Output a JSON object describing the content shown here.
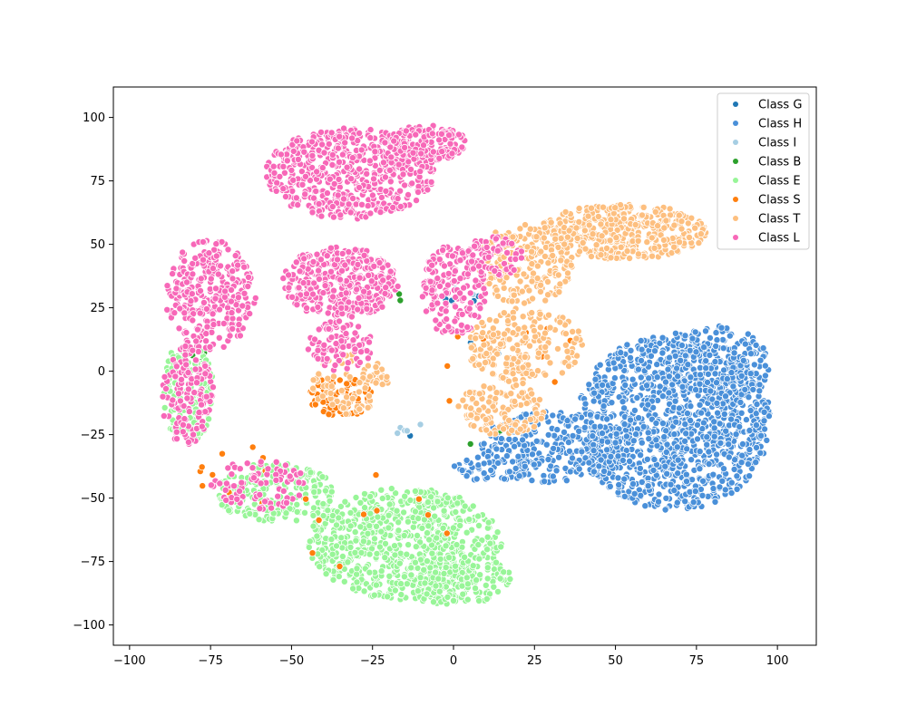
{
  "chart_data": {
    "type": "scatter",
    "title": "",
    "xlabel": "",
    "ylabel": "",
    "xlim": [
      -105,
      112
    ],
    "ylim": [
      -108,
      112
    ],
    "xticks": [
      -100,
      -75,
      -50,
      -25,
      0,
      25,
      50,
      75,
      100
    ],
    "yticks": [
      -100,
      -75,
      -50,
      -25,
      0,
      25,
      50,
      75,
      100
    ],
    "xtick_labels": [
      "−100",
      "−75",
      "−50",
      "−25",
      "0",
      "25",
      "50",
      "75",
      "100"
    ],
    "ytick_labels": [
      "−100",
      "−75",
      "−50",
      "−25",
      "0",
      "25",
      "50",
      "75",
      "100"
    ],
    "grid": false,
    "legend_position": "top-right",
    "series": [
      {
        "name": "Class G",
        "color": "#1f77b4",
        "clusters": [
          {
            "cx": 3,
            "cy": 28,
            "rx": 6,
            "ry": 4,
            "n": 4
          },
          {
            "cx": 10,
            "cy": 10,
            "rx": 5,
            "ry": 5,
            "n": 3
          },
          {
            "cx": -12,
            "cy": -24,
            "rx": 4,
            "ry": 4,
            "n": 2
          }
        ]
      },
      {
        "name": "Class H",
        "color": "#4a90d9",
        "clusters": [
          {
            "cx": 68,
            "cy": -20,
            "rx": 30,
            "ry": 35,
            "n": 1200
          },
          {
            "cx": 30,
            "cy": -30,
            "rx": 22,
            "ry": 14,
            "n": 260
          },
          {
            "cx": 82,
            "cy": 2,
            "rx": 16,
            "ry": 16,
            "n": 200
          },
          {
            "cx": 12,
            "cy": -38,
            "rx": 12,
            "ry": 6,
            "n": 60
          }
        ]
      },
      {
        "name": "Class I",
        "color": "#a6cee3",
        "clusters": [
          {
            "cx": -14,
            "cy": -22,
            "rx": 5,
            "ry": 5,
            "n": 5
          },
          {
            "cx": 2,
            "cy": 30,
            "rx": 6,
            "ry": 6,
            "n": 3
          }
        ]
      },
      {
        "name": "Class B",
        "color": "#2ca02c",
        "clusters": [
          {
            "cx": -80,
            "cy": 8,
            "rx": 5,
            "ry": 5,
            "n": 3
          },
          {
            "cx": 10,
            "cy": -25,
            "rx": 6,
            "ry": 6,
            "n": 2
          },
          {
            "cx": -15,
            "cy": 28,
            "rx": 5,
            "ry": 5,
            "n": 2
          }
        ]
      },
      {
        "name": "Class E",
        "color": "#98f598",
        "clusters": [
          {
            "cx": -15,
            "cy": -68,
            "rx": 30,
            "ry": 22,
            "n": 750
          },
          {
            "cx": -55,
            "cy": -48,
            "rx": 18,
            "ry": 12,
            "n": 220
          },
          {
            "cx": -82,
            "cy": -8,
            "rx": 8,
            "ry": 20,
            "n": 130
          },
          {
            "cx": 0,
            "cy": -82,
            "rx": 18,
            "ry": 10,
            "n": 150
          }
        ]
      },
      {
        "name": "Class S",
        "color": "#ff7f0e",
        "clusters": [
          {
            "cx": -35,
            "cy": -10,
            "rx": 10,
            "ry": 8,
            "n": 70
          },
          {
            "cx": -65,
            "cy": -40,
            "rx": 15,
            "ry": 15,
            "n": 10
          },
          {
            "cx": 15,
            "cy": 5,
            "rx": 25,
            "ry": 25,
            "n": 12
          },
          {
            "cx": -25,
            "cy": -60,
            "rx": 25,
            "ry": 20,
            "n": 10
          }
        ]
      },
      {
        "name": "Class T",
        "color": "#fdbf7f",
        "clusters": [
          {
            "cx": 52,
            "cy": 55,
            "rx": 26,
            "ry": 11,
            "n": 450
          },
          {
            "cx": 22,
            "cy": 42,
            "rx": 15,
            "ry": 16,
            "n": 220
          },
          {
            "cx": 22,
            "cy": 10,
            "rx": 18,
            "ry": 15,
            "n": 220
          },
          {
            "cx": 15,
            "cy": -15,
            "rx": 14,
            "ry": 10,
            "n": 120
          },
          {
            "cx": -32,
            "cy": -5,
            "rx": 12,
            "ry": 12,
            "n": 80
          }
        ]
      },
      {
        "name": "Class L",
        "color": "#f768b8",
        "clusters": [
          {
            "cx": -32,
            "cy": 78,
            "rx": 26,
            "ry": 18,
            "n": 600
          },
          {
            "cx": -35,
            "cy": 35,
            "rx": 18,
            "ry": 14,
            "n": 360
          },
          {
            "cx": -75,
            "cy": 30,
            "rx": 14,
            "ry": 22,
            "n": 300
          },
          {
            "cx": -82,
            "cy": -10,
            "rx": 8,
            "ry": 20,
            "n": 150
          },
          {
            "cx": -60,
            "cy": -45,
            "rx": 15,
            "ry": 10,
            "n": 80
          },
          {
            "cx": -8,
            "cy": 90,
            "rx": 12,
            "ry": 7,
            "n": 160
          },
          {
            "cx": 0,
            "cy": 32,
            "rx": 10,
            "ry": 18,
            "n": 180
          },
          {
            "cx": 12,
            "cy": 45,
            "rx": 10,
            "ry": 8,
            "n": 80
          },
          {
            "cx": -35,
            "cy": 10,
            "rx": 10,
            "ry": 10,
            "n": 100
          }
        ]
      }
    ]
  }
}
